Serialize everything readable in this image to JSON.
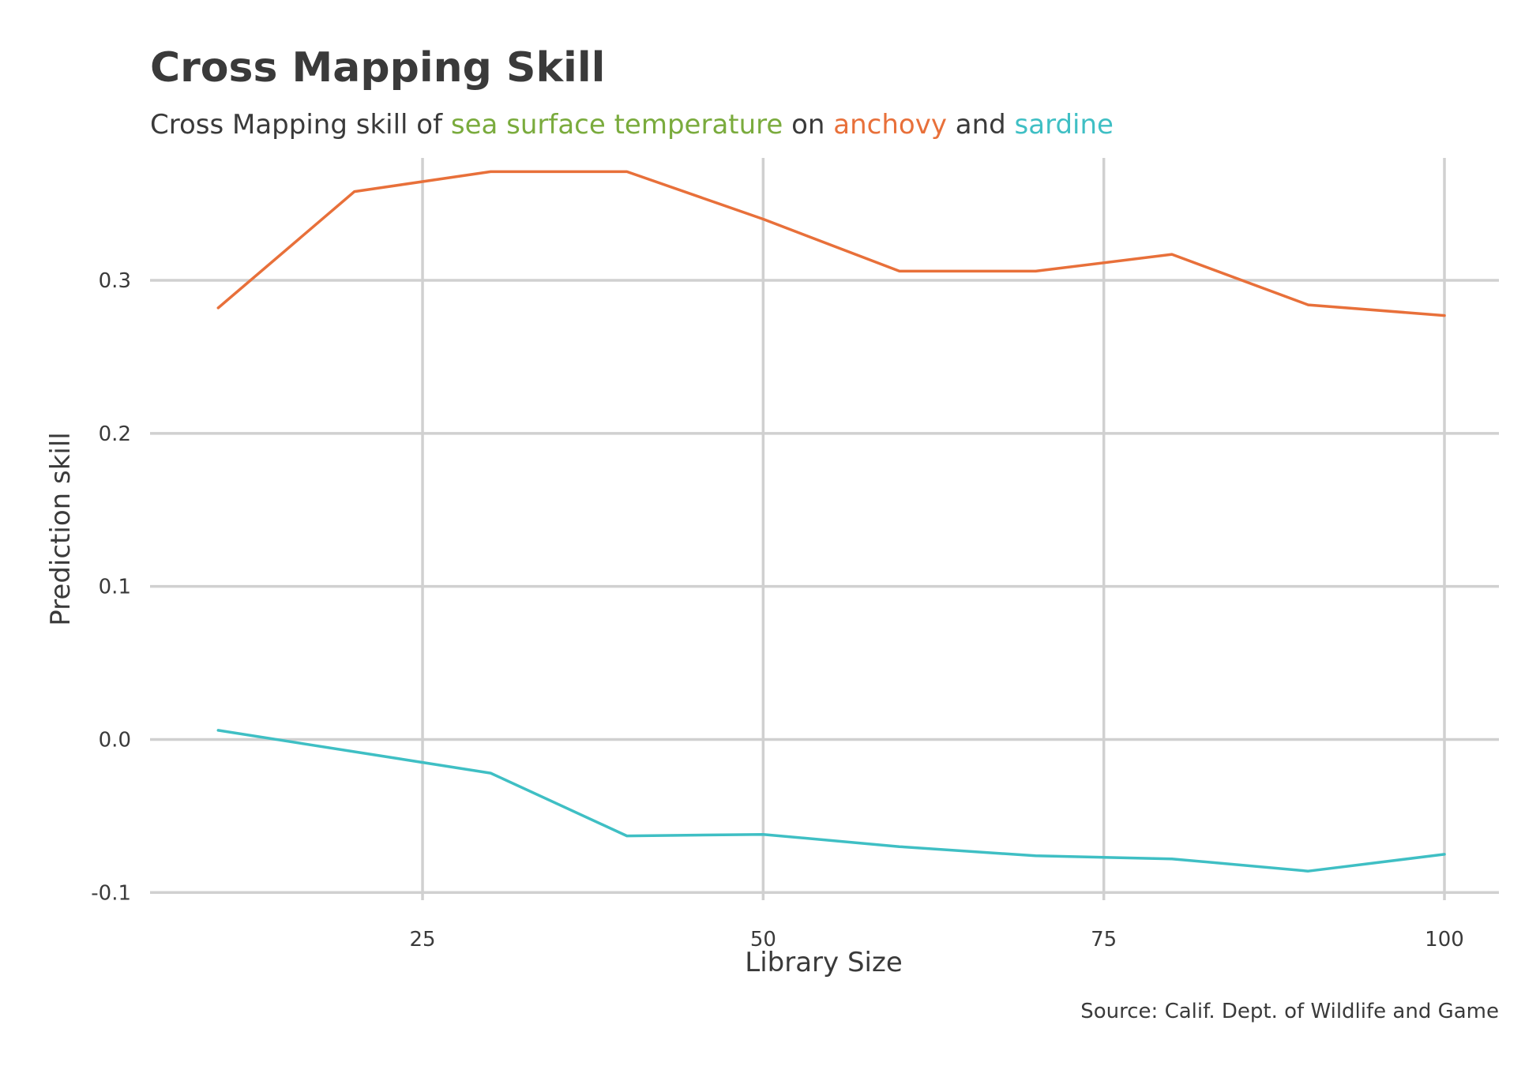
{
  "colors": {
    "text": "#3a3a3a",
    "grid": "#d0d0d0",
    "temperature": "#7aab3d",
    "anchovy": "#e8703a",
    "sardine": "#3fbfc4"
  },
  "chart_data": {
    "type": "line",
    "title": "Cross Mapping Skill",
    "subtitle": {
      "prefix": "Cross Mapping skill of ",
      "variable": "sea surface temperature",
      "on": " on ",
      "first": "anchovy",
      "and": " and ",
      "second": "sardine"
    },
    "xlabel": "Library Size",
    "ylabel": "Prediction skill",
    "caption": "Source: Calif. Dept. of Wildlife and Game",
    "xlim": [
      5,
      104
    ],
    "ylim": [
      -0.105,
      0.38
    ],
    "x_ticks": [
      25,
      50,
      75,
      100
    ],
    "x_tick_labels": [
      "25",
      "50",
      "75",
      "100"
    ],
    "y_ticks": [
      -0.1,
      0.0,
      0.1,
      0.2,
      0.3
    ],
    "y_tick_labels": [
      "-0.1",
      "0.0",
      "0.1",
      "0.2",
      "0.3"
    ],
    "grid": true,
    "legend": "none",
    "x": [
      10,
      20,
      30,
      40,
      50,
      60,
      70,
      80,
      90,
      100
    ],
    "series": [
      {
        "key": "anchovy",
        "values": [
          0.282,
          0.358,
          0.371,
          0.371,
          0.34,
          0.306,
          0.306,
          0.317,
          0.284,
          0.277
        ]
      },
      {
        "key": "sardine",
        "values": [
          0.006,
          -0.008,
          -0.022,
          -0.063,
          -0.062,
          -0.07,
          -0.076,
          -0.078,
          -0.086,
          -0.075
        ]
      }
    ]
  }
}
